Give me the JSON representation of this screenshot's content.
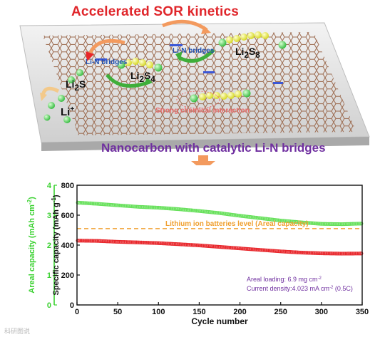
{
  "scheme": {
    "title": "Accelerated SOR kinetics",
    "subtitle": "Nanocarbon with catalytic Li-N bridges",
    "bridge_label_left": "Li-N bridges",
    "bridge_label_right": "Li-N bridges",
    "interaction_label": "Strong chemical interaction",
    "species": {
      "li2s8_main": "Li",
      "li2s8_sub": "2",
      "li2s8_s": "S",
      "li2s8_n": "8",
      "li2s4_main": "Li",
      "li2s4_sub": "2",
      "li2s4_s": "S",
      "li2s4_n": "4",
      "li2s_main": "Li",
      "li2s_sub": "2",
      "li2s_s": "S",
      "li_ion": "Li",
      "li_ion_sup": "+"
    },
    "colors": {
      "title": "#e0262b",
      "subtitle": "#7030a0",
      "arrow": "#f39a5e",
      "sulfur": "#e5e83a",
      "lithium": "#4fd05a"
    }
  },
  "chart_data": {
    "type": "scatter",
    "xlabel": "Cycle number",
    "ylabel_left": "Areal capacity (mAh cm",
    "ylabel_left_sup": "-2",
    "ylabel_left_end": ")",
    "ylabel_right": "Specific capacity (mAh g",
    "ylabel_right_sup": "-1",
    "ylabel_right_end": ")",
    "xlim": [
      0,
      350
    ],
    "ylim_specific": [
      0,
      800
    ],
    "ylim_areal": [
      0,
      4
    ],
    "x_ticks": [
      0,
      50,
      100,
      150,
      200,
      250,
      300,
      350
    ],
    "y_ticks_specific": [
      0,
      200,
      400,
      600,
      800
    ],
    "y_ticks_areal": [
      0,
      1,
      2,
      3,
      4
    ],
    "reference_line": {
      "label": "Lithium ion batteries level  (Areal capacity)",
      "areal_value": 2.55,
      "color": "#f0a030"
    },
    "annotations": {
      "loading": "Areal loading: 6.9 mg cm",
      "loading_sup": "-2",
      "current": "Current density:4.023 mA cm",
      "current_sup": "-2",
      "current_end": " (0.5C)"
    },
    "series": [
      {
        "color": "#66e05a",
        "axis": "areal",
        "points": [
          [
            1,
            3.42
          ],
          [
            25,
            3.38
          ],
          [
            50,
            3.33
          ],
          [
            75,
            3.28
          ],
          [
            100,
            3.25
          ],
          [
            125,
            3.2
          ],
          [
            150,
            3.14
          ],
          [
            175,
            3.07
          ],
          [
            200,
            2.98
          ],
          [
            225,
            2.9
          ],
          [
            250,
            2.82
          ],
          [
            275,
            2.76
          ],
          [
            300,
            2.71
          ],
          [
            325,
            2.7
          ],
          [
            350,
            2.72
          ]
        ]
      },
      {
        "color": "#e8262b",
        "axis": "specific",
        "points": [
          [
            1,
            430
          ],
          [
            25,
            428
          ],
          [
            50,
            422
          ],
          [
            75,
            418
          ],
          [
            100,
            413
          ],
          [
            125,
            406
          ],
          [
            150,
            398
          ],
          [
            175,
            388
          ],
          [
            200,
            378
          ],
          [
            225,
            368
          ],
          [
            250,
            358
          ],
          [
            275,
            350
          ],
          [
            300,
            345
          ],
          [
            325,
            343
          ],
          [
            350,
            344
          ]
        ]
      }
    ],
    "colors": {
      "axis_left": "#39d12f",
      "axis_right": "#111111",
      "annotation": "#7030a0"
    }
  },
  "watermark": "科研图说"
}
